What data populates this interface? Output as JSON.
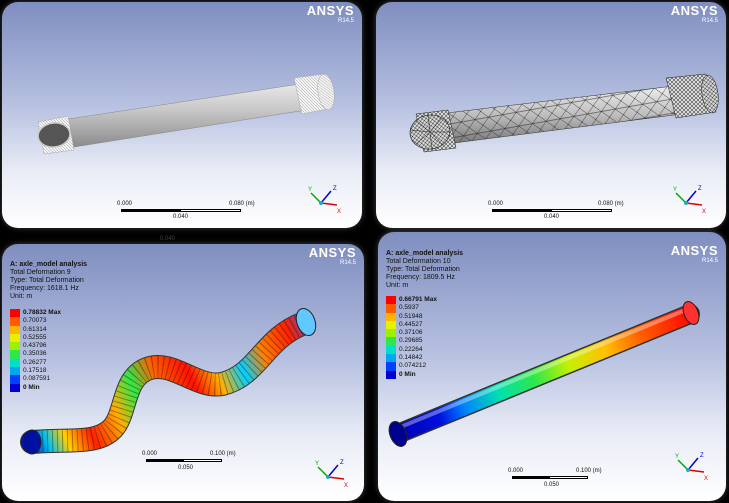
{
  "panels": [
    {
      "logo": {
        "brand": "ANSYS",
        "version": "R14.5"
      },
      "scale": {
        "left": "0.000",
        "right": "0.080 (m)",
        "mid": "0.040"
      }
    },
    {
      "logo": {
        "brand": "ANSYS",
        "version": "R14.5"
      },
      "scale": {
        "left": "0.000",
        "right": "0.080 (m)",
        "mid": "0.040"
      }
    },
    {
      "logo": {
        "brand": "ANSYS",
        "version": "R14.5"
      },
      "info": {
        "title": "A: axle_model analysis",
        "lines": [
          "Total Deformation 9",
          "Type: Total Deformation",
          "Frequency: 1618.1 Hz",
          "Unit: m"
        ]
      },
      "legend": [
        "0.78832 Max",
        "0.70073",
        "0.61314",
        "0.52555",
        "0.43796",
        "0.35036",
        "0.26277",
        "0.17518",
        "0.087591",
        "0 Min"
      ],
      "scale": {
        "left": "0.000",
        "right": "0.100 (m)",
        "mid": "0.050"
      }
    },
    {
      "logo": {
        "brand": "ANSYS",
        "version": "R14.5"
      },
      "info": {
        "title": "A: axle_model analysis",
        "lines": [
          "Total Deformation 10",
          "Type: Total Deformation",
          "Frequency: 1809.5 Hz",
          "Unit: m"
        ]
      },
      "legend": [
        "0.66791 Max",
        "0.5937",
        "0.51948",
        "0.44527",
        "0.37106",
        "0.29685",
        "0.22264",
        "0.14842",
        "0.074212",
        "0 Min"
      ],
      "scale": {
        "left": "0.000",
        "right": "0.100 (m)",
        "mid": "0.050"
      }
    }
  ],
  "reflection_label": "0.040",
  "colors": {
    "legend": [
      "#ff0000",
      "#ff5a00",
      "#ffb400",
      "#e6f000",
      "#9cf000",
      "#2ee84a",
      "#00e0c8",
      "#00a8f0",
      "#0040ff",
      "#0000d0"
    ]
  },
  "axes": {
    "x": "X",
    "y": "Y",
    "z": "Z"
  }
}
